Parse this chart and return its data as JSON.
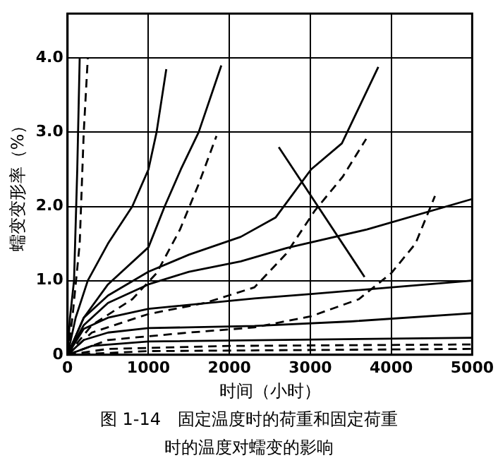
{
  "chart_data": {
    "type": "line",
    "xlabel": "时间（小时）",
    "ylabel": "蠕变变形率（%）",
    "annotations": [
      "图 1-14　固定温度时的荷重和固定荷重时的温度对蠕变的影响"
    ],
    "xlim": [
      0,
      5000
    ],
    "xticks": [
      0,
      1000,
      2000,
      3000,
      4000,
      5000
    ],
    "ylim": [
      0,
      4.6
    ],
    "yticks": [
      0,
      {
        "value": 1,
        "label": "1.0"
      },
      {
        "value": 2,
        "label": "2.0"
      },
      {
        "value": 3,
        "label": "3.0"
      },
      {
        "value": 4,
        "label": "4.0"
      }
    ],
    "grid": true,
    "legend": false,
    "marker": "none",
    "series": [
      {
        "color": "#000000",
        "line_style": "solid",
        "x": [
          0,
          30,
          80,
          120,
          150
        ],
        "values": [
          0,
          0.5,
          1.0,
          2.5,
          4.0
        ]
      },
      {
        "color": "#000000",
        "line_style": "dashed",
        "x": [
          0,
          60,
          150,
          200,
          250
        ],
        "values": [
          0,
          0.5,
          1.5,
          3.0,
          4.0
        ]
      },
      {
        "color": "#000000",
        "line_style": "solid",
        "x": [
          0,
          100,
          250,
          500,
          800,
          1000,
          1100,
          1220
        ],
        "values": [
          0,
          0.5,
          1.0,
          1.5,
          2.0,
          2.5,
          3.0,
          3.85
        ]
      },
      {
        "color": "#000000",
        "line_style": "solid",
        "x": [
          0,
          200,
          500,
          1000,
          1200,
          1400,
          1620,
          1900
        ],
        "values": [
          0,
          0.5,
          0.95,
          1.45,
          2.0,
          2.5,
          3.0,
          3.9
        ]
      },
      {
        "color": "#000000",
        "line_style": "solid",
        "x": [
          0,
          200,
          500,
          1000,
          1500,
          2140,
          2570,
          3010,
          3390,
          3840
        ],
        "values": [
          0,
          0.5,
          0.8,
          1.12,
          1.35,
          1.59,
          1.85,
          2.5,
          2.85,
          3.88
        ]
      },
      {
        "color": "#000000",
        "line_style": "solid",
        "x": [
          0,
          200,
          500,
          1000,
          1500,
          2140,
          2710,
          3700,
          5000
        ],
        "values": [
          0,
          0.4,
          0.7,
          0.95,
          1.12,
          1.26,
          1.44,
          1.69,
          2.1
        ]
      },
      {
        "color": "#000000",
        "line_style": "solid",
        "x": [
          0,
          200,
          500,
          1000,
          2310,
          3010,
          5000
        ],
        "values": [
          0,
          0.35,
          0.5,
          0.62,
          0.76,
          0.82,
          1.0
        ]
      },
      {
        "color": "#000000",
        "line_style": "solid",
        "x": [
          0,
          200,
          500,
          1000,
          2310,
          3500,
          5000
        ],
        "values": [
          0,
          0.2,
          0.3,
          0.36,
          0.39,
          0.45,
          0.56
        ]
      },
      {
        "color": "#000000",
        "line_style": "solid",
        "x": [
          0,
          300,
          1000,
          5000
        ],
        "values": [
          0,
          0.12,
          0.18,
          0.23
        ]
      },
      {
        "color": "#000000",
        "line_style": "dashed",
        "x": [
          0,
          300,
          800,
          1100,
          1390,
          1620,
          1840
        ],
        "values": [
          0,
          0.4,
          0.75,
          1.1,
          1.69,
          2.3,
          2.95
        ]
      },
      {
        "color": "#000000",
        "line_style": "dashed",
        "x": [
          0,
          300,
          1000,
          1700,
          2310,
          2700,
          3060,
          3400,
          3690
        ],
        "values": [
          0,
          0.3,
          0.55,
          0.7,
          0.91,
          1.36,
          1.95,
          2.4,
          2.91
        ]
      },
      {
        "color": "#000000",
        "line_style": "dashed",
        "x": [
          0,
          500,
          1500,
          2310,
          3010,
          3600,
          4000,
          4300,
          4540
        ],
        "values": [
          0,
          0.2,
          0.3,
          0.37,
          0.52,
          0.75,
          1.1,
          1.5,
          2.14
        ]
      },
      {
        "color": "#000000",
        "line_style": "dashed",
        "x": [
          0,
          500,
          2000,
          5000
        ],
        "values": [
          0,
          0.08,
          0.12,
          0.14
        ]
      },
      {
        "color": "#000000",
        "line_style": "dashed",
        "x": [
          0,
          1000,
          5000
        ],
        "values": [
          0,
          0.05,
          0.08
        ]
      },
      {
        "color": "#000000",
        "line_style": "solid",
        "x": [
          2610,
          3670
        ],
        "values": [
          2.8,
          1.05
        ]
      }
    ]
  }
}
